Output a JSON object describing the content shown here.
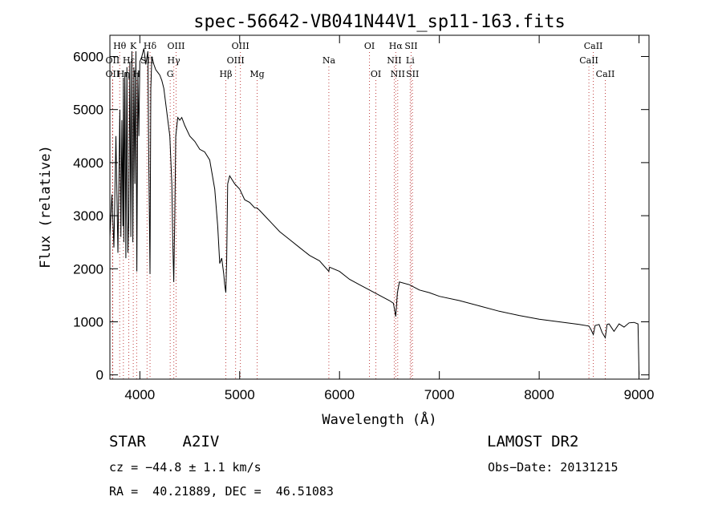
{
  "chart_data": {
    "type": "line",
    "title": "spec-56642-VB041N44V1_sp11-163.fits",
    "xlabel": "Wavelength (Å)",
    "ylabel": "Flux (relative)",
    "xlim": [
      3700,
      9100
    ],
    "ylim": [
      -80,
      6400
    ],
    "xticks": [
      4000,
      5000,
      6000,
      7000,
      8000,
      9000
    ],
    "yticks": [
      0,
      1000,
      2000,
      3000,
      4000,
      5000,
      6000
    ],
    "grid": false,
    "series": [
      {
        "x": [
          3700,
          3720,
          3740,
          3760,
          3780,
          3800,
          3810,
          3820,
          3830,
          3835,
          3840,
          3850,
          3860,
          3870,
          3880,
          3889,
          3900,
          3910,
          3920,
          3930,
          3940,
          3950,
          3960,
          3970,
          3980,
          3990,
          4000,
          4020,
          4040,
          4060,
          4080,
          4090,
          4102,
          4110,
          4120,
          4140,
          4160,
          4180,
          4200,
          4220,
          4240,
          4260,
          4280,
          4300,
          4320,
          4330,
          4340,
          4350,
          4360,
          4380,
          4400,
          4420,
          4450,
          4500,
          4550,
          4600,
          4650,
          4700,
          4750,
          4780,
          4800,
          4820,
          4840,
          4850,
          4861,
          4870,
          4880,
          4900,
          4950,
          5000,
          5050,
          5100,
          5150,
          5172,
          5200,
          5250,
          5300,
          5400,
          5500,
          5600,
          5700,
          5800,
          5893,
          5900,
          6000,
          6100,
          6200,
          6300,
          6400,
          6500,
          6540,
          6563,
          6580,
          6600,
          6700,
          6800,
          6900,
          7000,
          7200,
          7400,
          7600,
          7800,
          8000,
          8200,
          8400,
          8498,
          8520,
          8542,
          8560,
          8600,
          8630,
          8662,
          8680,
          8700,
          8750,
          8800,
          8850,
          8900,
          8950,
          8990,
          9000
        ],
        "y": [
          2600,
          3400,
          2400,
          4500,
          2300,
          5000,
          2600,
          4800,
          2800,
          5600,
          2500,
          5700,
          2200,
          5800,
          2300,
          2900,
          5900,
          2600,
          6100,
          2500,
          5800,
          3600,
          6100,
          1950,
          5700,
          4500,
          5900,
          6000,
          6150,
          5850,
          6100,
          4000,
          1900,
          5400,
          6000,
          5850,
          5750,
          5700,
          5650,
          5550,
          5400,
          5100,
          4800,
          4500,
          3600,
          2500,
          1750,
          3000,
          4500,
          4850,
          4800,
          4850,
          4700,
          4500,
          4400,
          4250,
          4200,
          4050,
          3500,
          2800,
          2100,
          2200,
          1900,
          1700,
          1550,
          2200,
          3600,
          3750,
          3600,
          3500,
          3300,
          3250,
          3150,
          3150,
          3100,
          3000,
          2900,
          2700,
          2550,
          2400,
          2250,
          2150,
          1950,
          2030,
          1950,
          1800,
          1700,
          1600,
          1500,
          1400,
          1350,
          1100,
          1550,
          1750,
          1700,
          1600,
          1550,
          1480,
          1400,
          1300,
          1200,
          1120,
          1050,
          1000,
          950,
          920,
          850,
          760,
          930,
          950,
          800,
          700,
          950,
          960,
          820,
          960,
          900,
          980,
          990,
          960,
          0
        ]
      }
    ],
    "line_markers": [
      {
        "name": "Hθ",
        "wave": 3798,
        "row": 1
      },
      {
        "name": "K",
        "wave": 3934,
        "row": 1
      },
      {
        "name": "Hδ",
        "wave": 4102,
        "row": 1
      },
      {
        "name": "OIII",
        "wave": 4363,
        "row": 1
      },
      {
        "name": "OIII",
        "wave": 5007,
        "row": 1
      },
      {
        "name": "OI",
        "wave": 6300,
        "row": 1
      },
      {
        "name": "Hα",
        "wave": 6563,
        "row": 1
      },
      {
        "name": "SII",
        "wave": 6717,
        "row": 1
      },
      {
        "name": "CaII",
        "wave": 8542,
        "row": 1
      },
      {
        "name": "OII",
        "wave": 3727,
        "row": 2
      },
      {
        "name": "Hε",
        "wave": 3889,
        "row": 2
      },
      {
        "name": "SII",
        "wave": 4072,
        "row": 2
      },
      {
        "name": "Hγ",
        "wave": 4340,
        "row": 2
      },
      {
        "name": "OIII",
        "wave": 4959,
        "row": 2
      },
      {
        "name": "Na",
        "wave": 5893,
        "row": 2
      },
      {
        "name": "NII",
        "wave": 6548,
        "row": 2
      },
      {
        "name": "Li",
        "wave": 6708,
        "row": 2
      },
      {
        "name": "CaII",
        "wave": 8498,
        "row": 2
      },
      {
        "name": "OII",
        "wave": 3727,
        "row": 3
      },
      {
        "name": "Hη",
        "wave": 3835,
        "row": 3
      },
      {
        "name": "H",
        "wave": 3968,
        "row": 3
      },
      {
        "name": "G",
        "wave": 4304,
        "row": 3
      },
      {
        "name": "Hβ",
        "wave": 4861,
        "row": 3
      },
      {
        "name": "Mg",
        "wave": 5175,
        "row": 3
      },
      {
        "name": "OI",
        "wave": 6364,
        "row": 3
      },
      {
        "name": "NII",
        "wave": 6583,
        "row": 3
      },
      {
        "name": "SII",
        "wave": 6731,
        "row": 3
      },
      {
        "name": "CaII",
        "wave": 8662,
        "row": 3
      }
    ]
  },
  "info": {
    "class": "STAR    A2IV",
    "survey": "LAMOST DR2",
    "cz": "cz = −44.8 ± 1.1 km/s",
    "obs_date": "Obs−Date: 20131215",
    "coords": "RA =  40.21889, DEC =  46.51083"
  }
}
